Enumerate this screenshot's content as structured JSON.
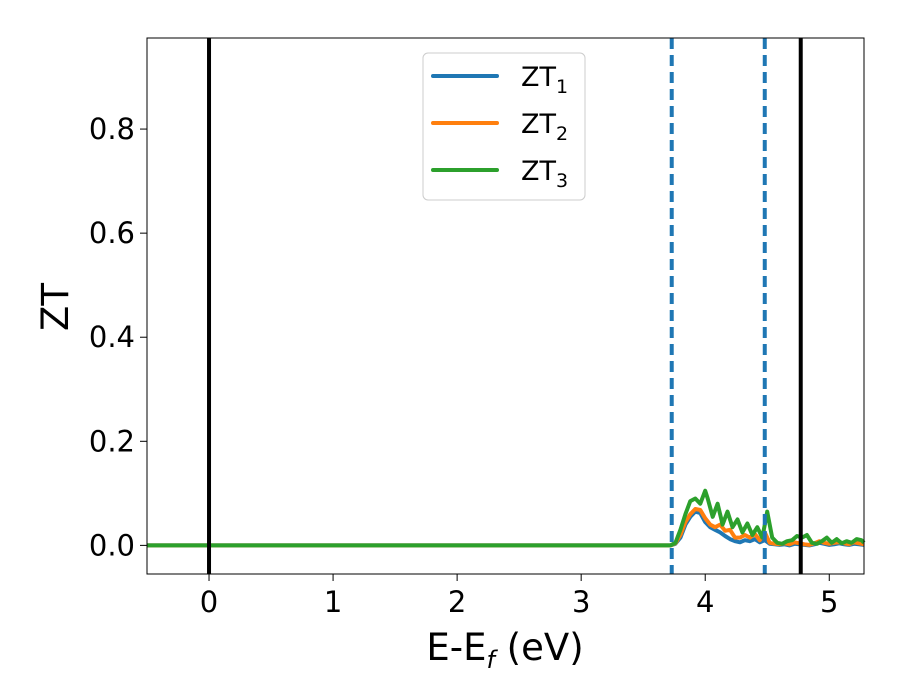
{
  "chart_data": {
    "type": "line",
    "title": "",
    "xlabel": {
      "main": "E-E",
      "sub": "f",
      "unit": " (eV)"
    },
    "ylabel": "ZT",
    "xlim": [
      -0.5,
      5.28
    ],
    "ylim": [
      -0.055,
      0.975
    ],
    "xticks": [
      0,
      1,
      2,
      3,
      4,
      5
    ],
    "xtick_labels": [
      "0",
      "1",
      "2",
      "3",
      "4",
      "5"
    ],
    "yticks": [
      0.0,
      0.2,
      0.4,
      0.6,
      0.8
    ],
    "ytick_labels": [
      "0.0",
      "0.2",
      "0.4",
      "0.6",
      "0.8"
    ],
    "grid": false,
    "legend_position": "top-center",
    "vlines": [
      {
        "x": 0.0,
        "style": "solid",
        "color": "#000000"
      },
      {
        "x": 4.77,
        "style": "solid",
        "color": "#000000"
      },
      {
        "x": 3.73,
        "style": "dashed",
        "color": "#1f77b4"
      },
      {
        "x": 4.48,
        "style": "dashed",
        "color": "#1f77b4"
      }
    ],
    "series": [
      {
        "name": "ZT",
        "subscript": "1",
        "color": "#1f77b4",
        "x": [
          -0.5,
          3.72,
          3.76,
          3.8,
          3.84,
          3.88,
          3.92,
          3.96,
          4.0,
          4.04,
          4.08,
          4.12,
          4.16,
          4.2,
          4.24,
          4.28,
          4.32,
          4.36,
          4.4,
          4.44,
          4.48,
          4.52,
          4.56,
          4.6,
          4.64,
          4.68,
          4.72,
          4.76,
          4.8,
          4.84,
          4.88,
          4.92,
          4.96,
          5.0,
          5.04,
          5.08,
          5.12,
          5.16,
          5.2,
          5.24,
          5.28
        ],
        "y": [
          0.0,
          0.0,
          0.003,
          0.015,
          0.04,
          0.055,
          0.065,
          0.062,
          0.045,
          0.035,
          0.03,
          0.025,
          0.018,
          0.012,
          0.008,
          0.006,
          0.01,
          0.008,
          0.012,
          0.006,
          0.01,
          0.003,
          0.002,
          0.001,
          0.002,
          0.0,
          0.003,
          0.002,
          0.001,
          0.0,
          0.002,
          0.005,
          0.003,
          0.001,
          0.002,
          0.004,
          0.002,
          0.001,
          0.003,
          0.002,
          0.001
        ]
      },
      {
        "name": "ZT",
        "subscript": "2",
        "color": "#ff7f0e",
        "x": [
          -0.5,
          3.72,
          3.76,
          3.8,
          3.84,
          3.88,
          3.92,
          3.96,
          4.0,
          4.04,
          4.08,
          4.12,
          4.16,
          4.2,
          4.24,
          4.28,
          4.32,
          4.36,
          4.4,
          4.44,
          4.48,
          4.52,
          4.56,
          4.6,
          4.64,
          4.68,
          4.72,
          4.76,
          4.8,
          4.84,
          4.88,
          4.92,
          4.96,
          5.0,
          5.04,
          5.08,
          5.12,
          5.16,
          5.2,
          5.24,
          5.28
        ],
        "y": [
          0.0,
          0.0,
          0.004,
          0.02,
          0.045,
          0.06,
          0.07,
          0.068,
          0.052,
          0.04,
          0.035,
          0.04,
          0.028,
          0.03,
          0.015,
          0.015,
          0.02,
          0.015,
          0.022,
          0.01,
          0.025,
          0.005,
          0.003,
          0.002,
          0.004,
          0.002,
          0.006,
          0.004,
          0.002,
          0.001,
          0.004,
          0.008,
          0.005,
          0.003,
          0.005,
          0.006,
          0.004,
          0.002,
          0.006,
          0.004,
          0.002
        ]
      },
      {
        "name": "ZT",
        "subscript": "3",
        "color": "#2ca02c",
        "x": [
          -0.5,
          3.72,
          3.76,
          3.8,
          3.84,
          3.88,
          3.92,
          3.96,
          4.0,
          4.02,
          4.06,
          4.1,
          4.14,
          4.18,
          4.22,
          4.26,
          4.3,
          4.34,
          4.38,
          4.42,
          4.46,
          4.48,
          4.5,
          4.54,
          4.58,
          4.62,
          4.66,
          4.7,
          4.74,
          4.78,
          4.82,
          4.86,
          4.9,
          4.94,
          4.98,
          5.02,
          5.06,
          5.1,
          5.14,
          5.18,
          5.22,
          5.26,
          5.28
        ],
        "y": [
          0.0,
          0.0,
          0.005,
          0.03,
          0.06,
          0.085,
          0.09,
          0.08,
          0.105,
          0.09,
          0.055,
          0.08,
          0.04,
          0.065,
          0.035,
          0.05,
          0.025,
          0.042,
          0.02,
          0.035,
          0.015,
          0.04,
          0.065,
          0.015,
          0.005,
          0.003,
          0.008,
          0.01,
          0.018,
          0.015,
          0.02,
          0.005,
          0.003,
          0.008,
          0.015,
          0.005,
          0.012,
          0.004,
          0.008,
          0.005,
          0.012,
          0.01,
          0.005
        ]
      }
    ]
  }
}
